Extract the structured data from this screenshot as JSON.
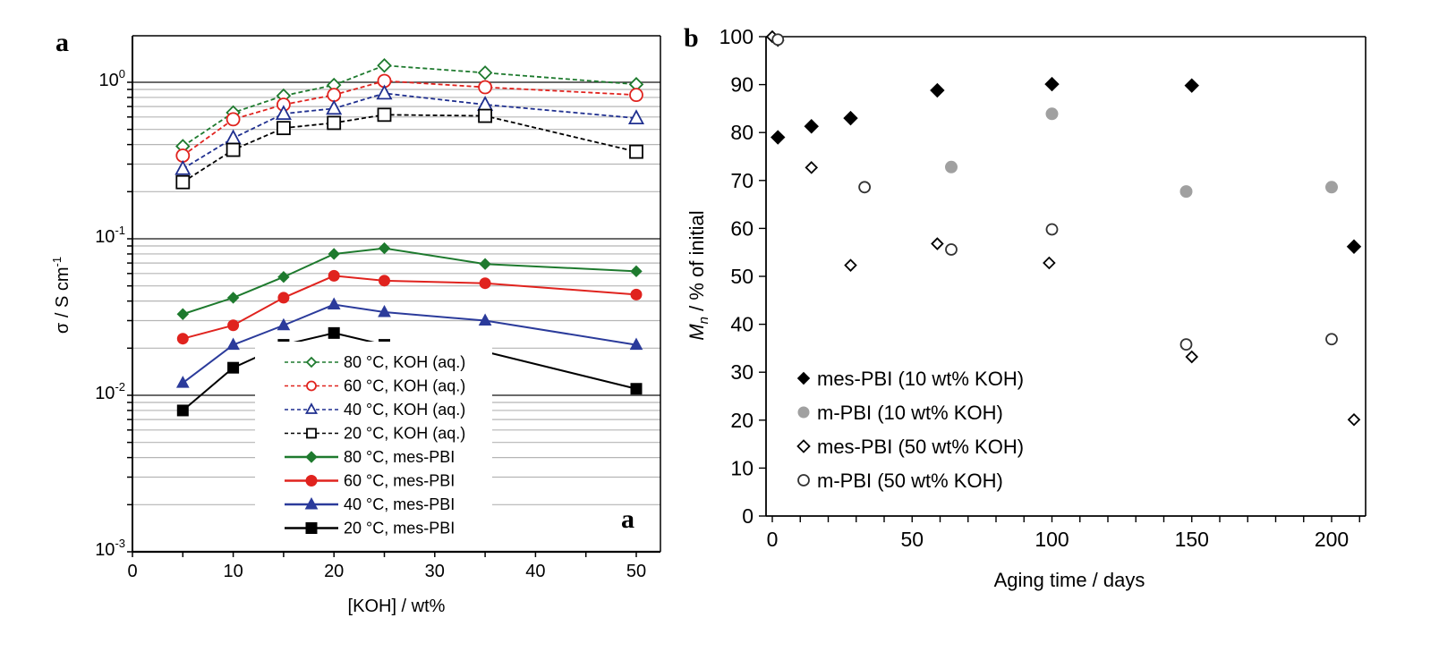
{
  "chart_data": [
    {
      "type": "line",
      "panel_label": "a",
      "inner_label": "a",
      "title": "",
      "xlabel": "[KOH] / wt%",
      "ylabel": "σ / S cm⁻¹",
      "ylabel_base": "σ / S cm",
      "ylabel_sup": "-1",
      "xlim": [
        0,
        52
      ],
      "ylim": [
        0.001,
        2
      ],
      "yscale": "log",
      "grid": true,
      "xticks": [
        0,
        10,
        20,
        30,
        40,
        50
      ],
      "xtick_labels": [
        "0",
        "10",
        "20",
        "30",
        "40",
        "50"
      ],
      "yticks": [
        {
          "value": 1,
          "base": "10",
          "exp": "0"
        },
        {
          "value": 0.1,
          "base": "10",
          "exp": "-1"
        },
        {
          "value": 0.01,
          "base": "10",
          "exp": "-2"
        },
        {
          "value": 0.001,
          "base": "10",
          "exp": "-3"
        }
      ],
      "legend_position": "bottom-center",
      "x": [
        5,
        10,
        15,
        20,
        25,
        35,
        50
      ],
      "series": [
        {
          "name": "80 °C, KOH (aq.)",
          "color": "#1e7a2e",
          "style": "dashed",
          "marker": "diamond-open",
          "values": [
            0.39,
            0.64,
            0.82,
            0.96,
            1.28,
            1.15,
            0.97
          ]
        },
        {
          "name": "60 °C, KOH (aq.)",
          "color": "#e0231e",
          "style": "dashed",
          "marker": "circle-open",
          "values": [
            0.34,
            0.58,
            0.72,
            0.83,
            1.02,
            0.93,
            0.83
          ]
        },
        {
          "name": "40 °C, KOH (aq.)",
          "color": "#1f2f8f",
          "style": "dashed",
          "marker": "triangle-open",
          "values": [
            0.28,
            0.44,
            0.63,
            0.68,
            0.85,
            0.72,
            0.59
          ]
        },
        {
          "name": "20 °C, KOH (aq.)",
          "color": "#000000",
          "style": "dashed",
          "marker": "square-open",
          "values": [
            0.23,
            0.37,
            0.51,
            0.55,
            0.62,
            0.61,
            0.36
          ]
        },
        {
          "name": "80 °C, mes-PBI",
          "color": "#1e7a2e",
          "style": "solid",
          "marker": "diamond-filled",
          "values": [
            0.033,
            0.042,
            0.057,
            0.08,
            0.087,
            0.069,
            0.062
          ]
        },
        {
          "name": "60 °C, mes-PBI",
          "color": "#e0231e",
          "style": "solid",
          "marker": "circle-filled",
          "values": [
            0.023,
            0.028,
            0.042,
            0.058,
            0.054,
            0.052,
            0.044
          ]
        },
        {
          "name": "40 °C, mes-PBI",
          "color": "#2b3b9b",
          "style": "solid",
          "marker": "triangle-filled",
          "values": [
            0.012,
            0.021,
            0.028,
            0.038,
            0.034,
            0.03,
            0.021
          ]
        },
        {
          "name": "20 °C, mes-PBI",
          "color": "#000000",
          "style": "solid",
          "marker": "square-filled",
          "values": [
            0.008,
            0.015,
            0.021,
            0.025,
            0.021,
            0.019,
            0.011
          ]
        }
      ]
    },
    {
      "type": "scatter",
      "panel_label": "b",
      "title": "",
      "xlabel": "Aging time / days",
      "ylabel": "Mn / % of initial",
      "ylabel_italic": "M",
      "ylabel_sub": "n",
      "ylabel_rest": " / % of initial",
      "xlim": [
        0,
        212
      ],
      "ylim": [
        0,
        100
      ],
      "grid": false,
      "xticks": [
        0,
        50,
        100,
        150,
        200
      ],
      "xtick_labels": [
        "0",
        "50",
        "100",
        "150",
        "200"
      ],
      "yticks": [
        0,
        10,
        20,
        30,
        40,
        50,
        60,
        70,
        80,
        90,
        100
      ],
      "ytick_labels": [
        "0",
        "10",
        "20",
        "30",
        "40",
        "50",
        "60",
        "70",
        "80",
        "90",
        "100"
      ],
      "legend_position": "bottom-left",
      "series": [
        {
          "name": "mes-PBI (10 wt% KOH)",
          "marker": "diamond-filled",
          "color": "#000000",
          "points": [
            [
              2,
              79
            ],
            [
              14,
              81.3
            ],
            [
              28,
              83
            ],
            [
              59,
              88.8
            ],
            [
              100,
              90.1
            ],
            [
              150,
              89.8
            ],
            [
              208,
              56.2
            ]
          ]
        },
        {
          "name": "m-PBI (10 wt% KOH)",
          "marker": "circle-filled",
          "color": "#a0a0a0",
          "points": [
            [
              64,
              72.8
            ],
            [
              100,
              83.9
            ],
            [
              148,
              67.7
            ],
            [
              200,
              68.6
            ]
          ]
        },
        {
          "name": "mes-PBI (50 wt% KOH)",
          "marker": "diamond-open",
          "color": "#000000",
          "points": [
            [
              0,
              100
            ],
            [
              2,
              99.2
            ],
            [
              14,
              72.7
            ],
            [
              28,
              52.3
            ],
            [
              59,
              56.8
            ],
            [
              99,
              52.8
            ],
            [
              150,
              33.2
            ],
            [
              208,
              20.1
            ]
          ]
        },
        {
          "name": "m-PBI (50 wt% KOH)",
          "marker": "circle-open",
          "color": "#333333",
          "points": [
            [
              2,
              99.4
            ],
            [
              33,
              68.6
            ],
            [
              64,
              55.6
            ],
            [
              100,
              59.8
            ],
            [
              148,
              35.8
            ],
            [
              200,
              36.9
            ]
          ]
        }
      ]
    }
  ]
}
